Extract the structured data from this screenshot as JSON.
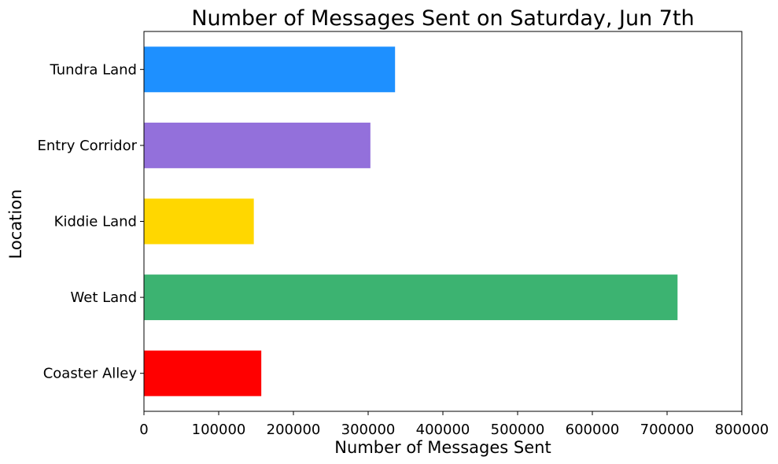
{
  "chart_data": {
    "type": "bar",
    "orientation": "horizontal",
    "title": "Number of Messages Sent on Saturday, Jun 7th",
    "xlabel": "Number of Messages Sent",
    "ylabel": "Location",
    "xlim": [
      0,
      800000
    ],
    "xticks": [
      0,
      100000,
      200000,
      300000,
      400000,
      500000,
      600000,
      700000,
      800000
    ],
    "categories": [
      "Coaster Alley",
      "Wet Land",
      "Kiddie Land",
      "Entry Corridor",
      "Tundra Land"
    ],
    "values": [
      157000,
      714000,
      147000,
      303000,
      336000
    ],
    "colors": [
      "#ff0000",
      "#3cb371",
      "#ffd700",
      "#9370db",
      "#1e90ff"
    ],
    "grid": false,
    "legend": "none"
  }
}
